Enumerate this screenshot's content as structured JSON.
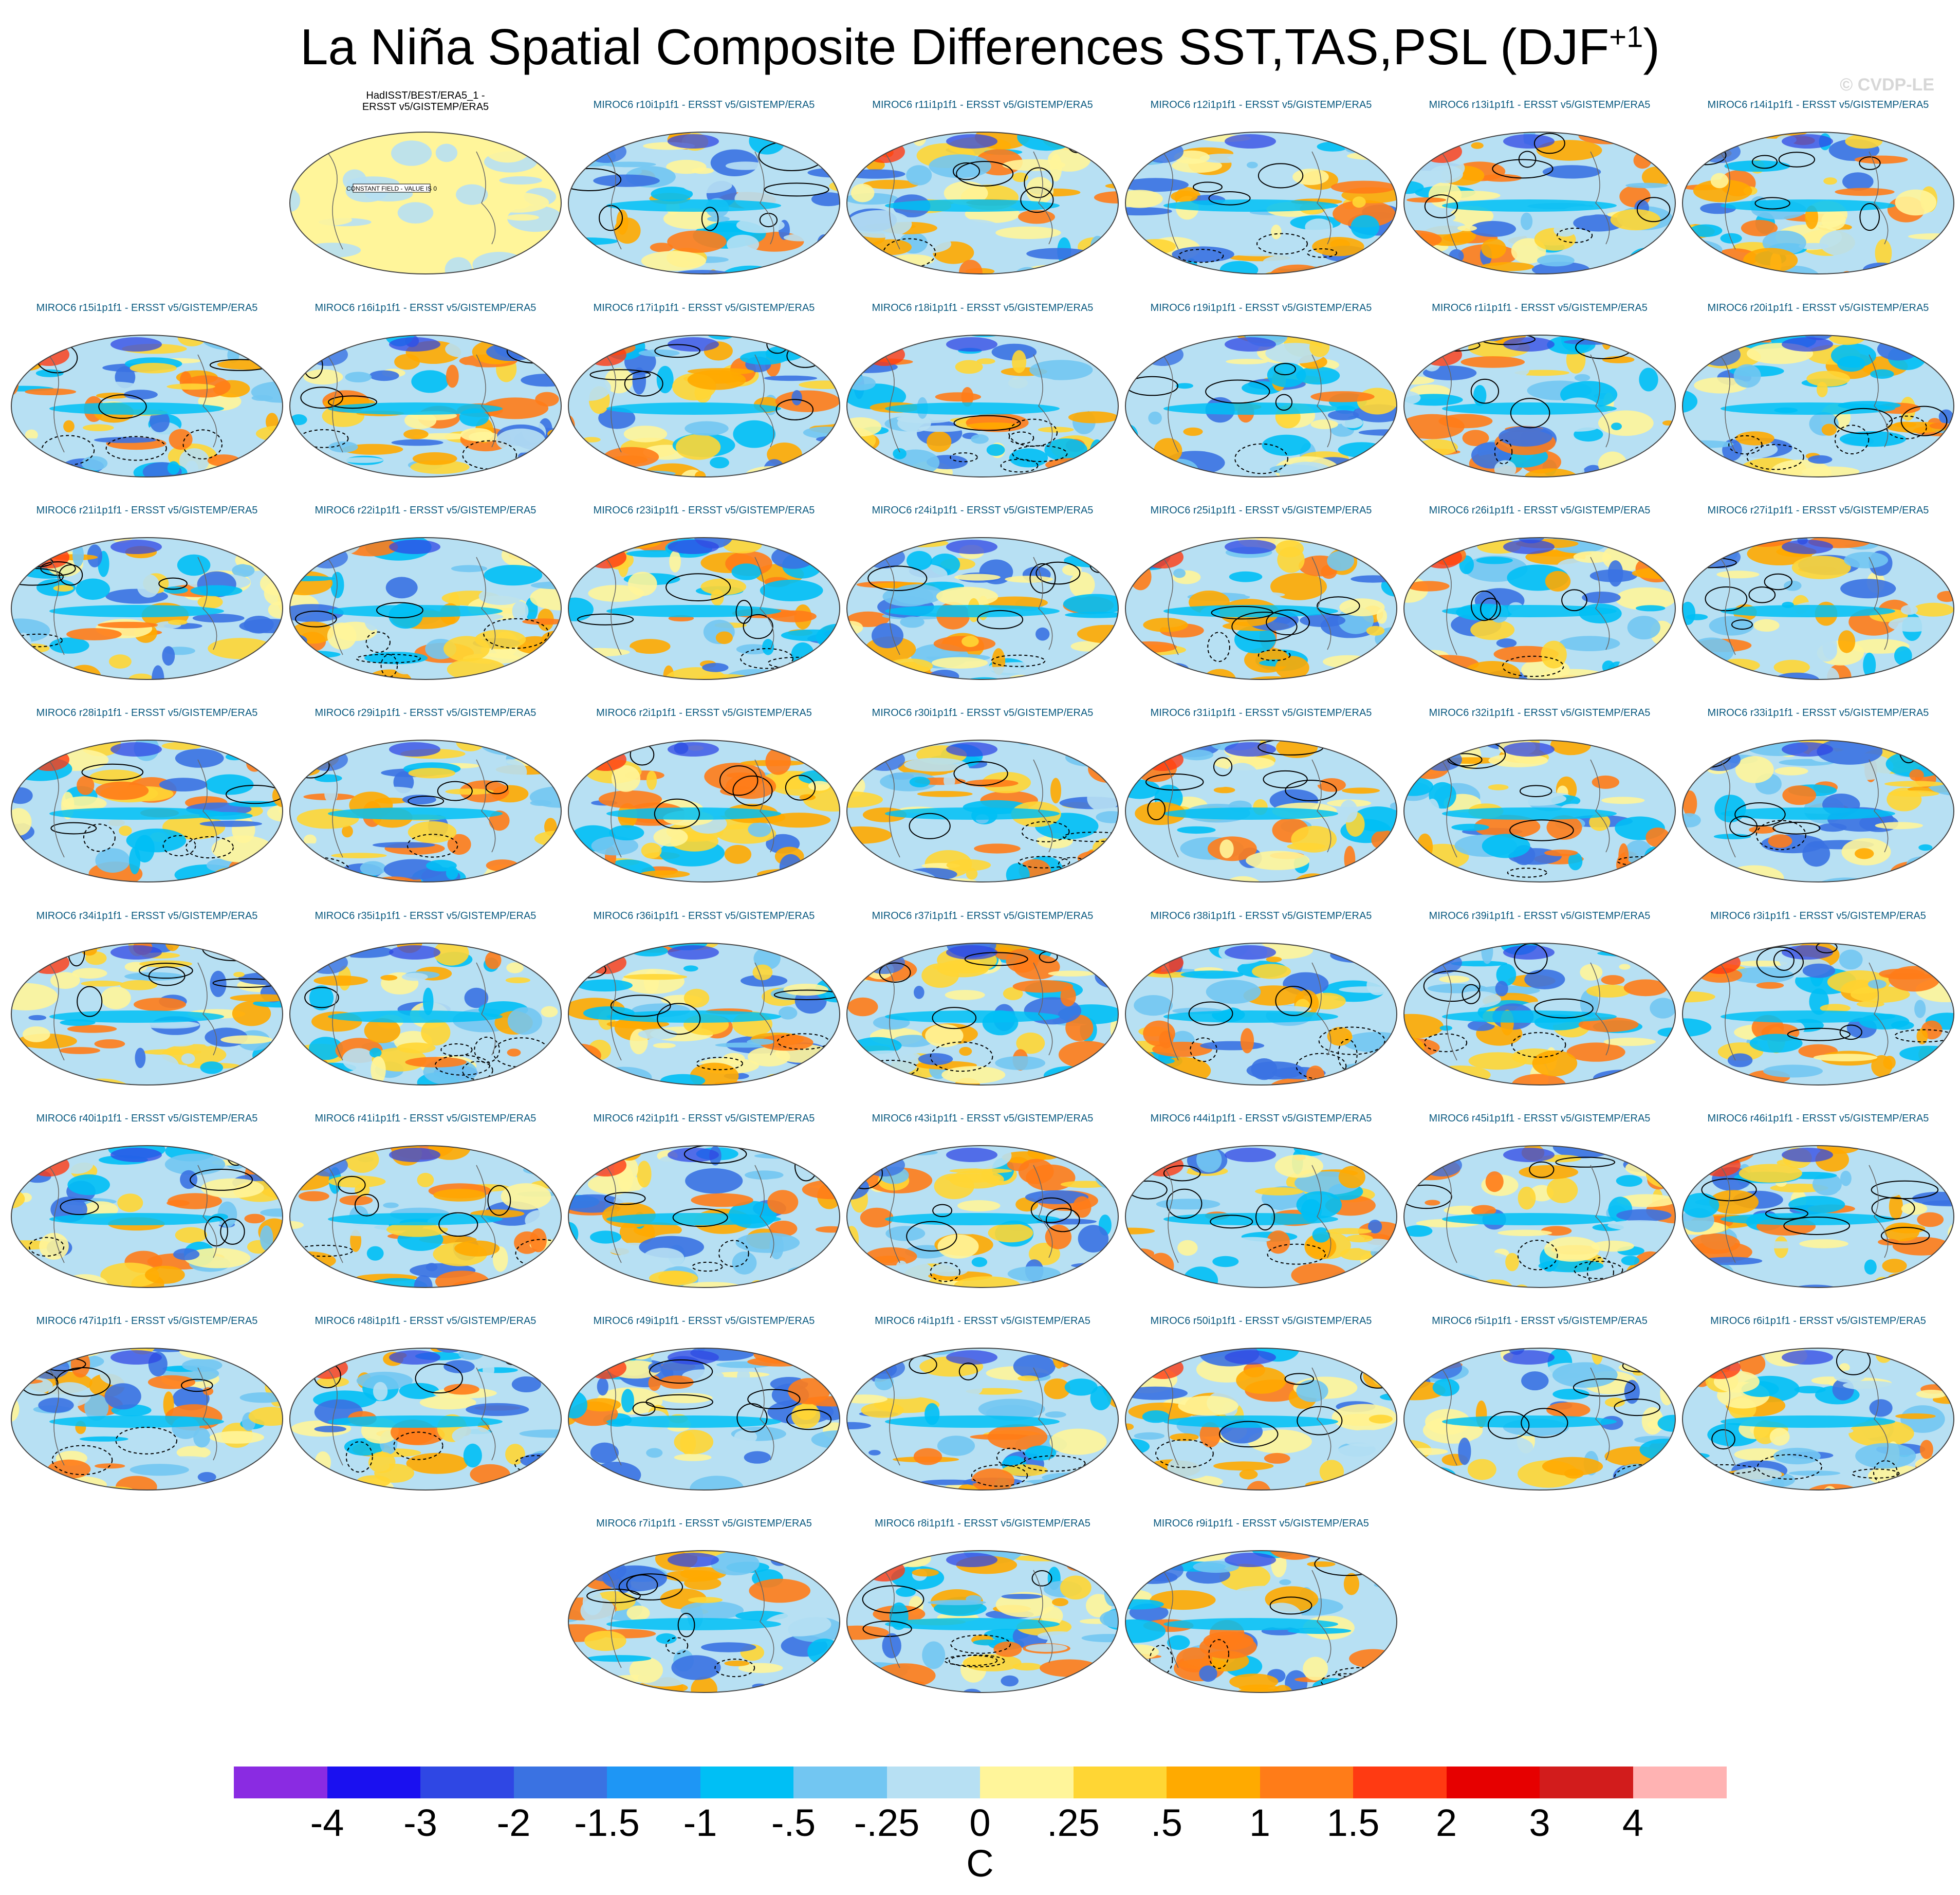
{
  "title": {
    "main": "La Niña Spatial Composite Differences SST,TAS,PSL (DJF",
    "superscript": "+1",
    "close": ")"
  },
  "copyright": "© CVDP-LE",
  "observed_panel": {
    "label": "HadISST/BEST/ERA5_1 - ERSST v5/GISTEMP/ERA5",
    "note": "CONSTANT FIELD - VALUE IS 0"
  },
  "panels": [
    {
      "label": "MIROC6 r10i1p1f1 - ERSST v5/GISTEMP/ERA5"
    },
    {
      "label": "MIROC6 r11i1p1f1 - ERSST v5/GISTEMP/ERA5"
    },
    {
      "label": "MIROC6 r12i1p1f1 - ERSST v5/GISTEMP/ERA5"
    },
    {
      "label": "MIROC6 r13i1p1f1 - ERSST v5/GISTEMP/ERA5"
    },
    {
      "label": "MIROC6 r14i1p1f1 - ERSST v5/GISTEMP/ERA5"
    },
    {
      "label": "MIROC6 r15i1p1f1 - ERSST v5/GISTEMP/ERA5"
    },
    {
      "label": "MIROC6 r16i1p1f1 - ERSST v5/GISTEMP/ERA5"
    },
    {
      "label": "MIROC6 r17i1p1f1 - ERSST v5/GISTEMP/ERA5"
    },
    {
      "label": "MIROC6 r18i1p1f1 - ERSST v5/GISTEMP/ERA5"
    },
    {
      "label": "MIROC6 r19i1p1f1 - ERSST v5/GISTEMP/ERA5"
    },
    {
      "label": "MIROC6 r1i1p1f1 - ERSST v5/GISTEMP/ERA5"
    },
    {
      "label": "MIROC6 r20i1p1f1 - ERSST v5/GISTEMP/ERA5"
    },
    {
      "label": "MIROC6 r21i1p1f1 - ERSST v5/GISTEMP/ERA5"
    },
    {
      "label": "MIROC6 r22i1p1f1 - ERSST v5/GISTEMP/ERA5"
    },
    {
      "label": "MIROC6 r23i1p1f1 - ERSST v5/GISTEMP/ERA5"
    },
    {
      "label": "MIROC6 r24i1p1f1 - ERSST v5/GISTEMP/ERA5"
    },
    {
      "label": "MIROC6 r25i1p1f1 - ERSST v5/GISTEMP/ERA5"
    },
    {
      "label": "MIROC6 r26i1p1f1 - ERSST v5/GISTEMP/ERA5"
    },
    {
      "label": "MIROC6 r27i1p1f1 - ERSST v5/GISTEMP/ERA5"
    },
    {
      "label": "MIROC6 r28i1p1f1 - ERSST v5/GISTEMP/ERA5"
    },
    {
      "label": "MIROC6 r29i1p1f1 - ERSST v5/GISTEMP/ERA5"
    },
    {
      "label": "MIROC6 r2i1p1f1 - ERSST v5/GISTEMP/ERA5"
    },
    {
      "label": "MIROC6 r30i1p1f1 - ERSST v5/GISTEMP/ERA5"
    },
    {
      "label": "MIROC6 r31i1p1f1 - ERSST v5/GISTEMP/ERA5"
    },
    {
      "label": "MIROC6 r32i1p1f1 - ERSST v5/GISTEMP/ERA5"
    },
    {
      "label": "MIROC6 r33i1p1f1 - ERSST v5/GISTEMP/ERA5"
    },
    {
      "label": "MIROC6 r34i1p1f1 - ERSST v5/GISTEMP/ERA5"
    },
    {
      "label": "MIROC6 r35i1p1f1 - ERSST v5/GISTEMP/ERA5"
    },
    {
      "label": "MIROC6 r36i1p1f1 - ERSST v5/GISTEMP/ERA5"
    },
    {
      "label": "MIROC6 r37i1p1f1 - ERSST v5/GISTEMP/ERA5"
    },
    {
      "label": "MIROC6 r38i1p1f1 - ERSST v5/GISTEMP/ERA5"
    },
    {
      "label": "MIROC6 r39i1p1f1 - ERSST v5/GISTEMP/ERA5"
    },
    {
      "label": "MIROC6 r3i1p1f1 - ERSST v5/GISTEMP/ERA5"
    },
    {
      "label": "MIROC6 r40i1p1f1 - ERSST v5/GISTEMP/ERA5"
    },
    {
      "label": "MIROC6 r41i1p1f1 - ERSST v5/GISTEMP/ERA5"
    },
    {
      "label": "MIROC6 r42i1p1f1 - ERSST v5/GISTEMP/ERA5"
    },
    {
      "label": "MIROC6 r43i1p1f1 - ERSST v5/GISTEMP/ERA5"
    },
    {
      "label": "MIROC6 r44i1p1f1 - ERSST v5/GISTEMP/ERA5"
    },
    {
      "label": "MIROC6 r45i1p1f1 - ERSST v5/GISTEMP/ERA5"
    },
    {
      "label": "MIROC6 r46i1p1f1 - ERSST v5/GISTEMP/ERA5"
    },
    {
      "label": "MIROC6 r47i1p1f1 - ERSST v5/GISTEMP/ERA5"
    },
    {
      "label": "MIROC6 r48i1p1f1 - ERSST v5/GISTEMP/ERA5"
    },
    {
      "label": "MIROC6 r49i1p1f1 - ERSST v5/GISTEMP/ERA5"
    },
    {
      "label": "MIROC6 r4i1p1f1 - ERSST v5/GISTEMP/ERA5"
    },
    {
      "label": "MIROC6 r50i1p1f1 - ERSST v5/GISTEMP/ERA5"
    },
    {
      "label": "MIROC6 r5i1p1f1 - ERSST v5/GISTEMP/ERA5"
    },
    {
      "label": "MIROC6 r6i1p1f1 - ERSST v5/GISTEMP/ERA5"
    },
    {
      "label": "MIROC6 r7i1p1f1 - ERSST v5/GISTEMP/ERA5"
    },
    {
      "label": "MIROC6 r8i1p1f1 - ERSST v5/GISTEMP/ERA5"
    },
    {
      "label": "MIROC6 r9i1p1f1 - ERSST v5/GISTEMP/ERA5"
    }
  ],
  "colorbar": {
    "colors": [
      "#8a2be2",
      "#1a10f0",
      "#2f47e4",
      "#3a72e2",
      "#1e96f5",
      "#00bff5",
      "#72c6f2",
      "#b7e0f3",
      "#fff59a",
      "#ffd634",
      "#ffaa00",
      "#ff7c18",
      "#ff3a12",
      "#e60000",
      "#d21c1c",
      "#ffb3b3"
    ],
    "labels": [
      "-4",
      "-3",
      "-2",
      "-1.5",
      "-1",
      "-.5",
      "-.25",
      "0",
      ".25",
      ".5",
      "1",
      "1.5",
      "2",
      "3",
      "4"
    ],
    "unit": "C"
  }
}
